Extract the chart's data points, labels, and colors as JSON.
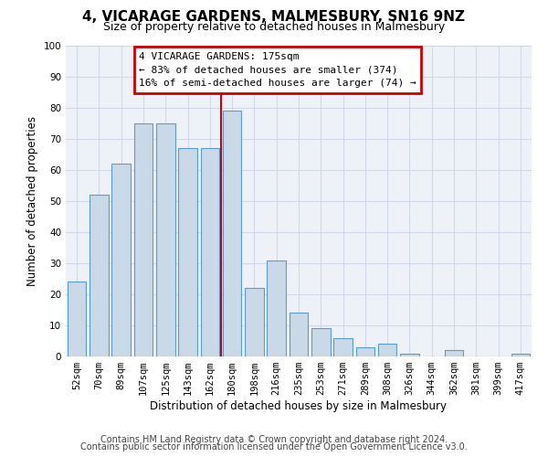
{
  "title": "4, VICARAGE GARDENS, MALMESBURY, SN16 9NZ",
  "subtitle": "Size of property relative to detached houses in Malmesbury",
  "xlabel": "Distribution of detached houses by size in Malmesbury",
  "ylabel": "Number of detached properties",
  "categories": [
    "52sqm",
    "70sqm",
    "89sqm",
    "107sqm",
    "125sqm",
    "143sqm",
    "162sqm",
    "180sqm",
    "198sqm",
    "216sqm",
    "235sqm",
    "253sqm",
    "271sqm",
    "289sqm",
    "308sqm",
    "326sqm",
    "344sqm",
    "362sqm",
    "381sqm",
    "399sqm",
    "417sqm"
  ],
  "values": [
    24,
    52,
    62,
    75,
    75,
    67,
    67,
    79,
    22,
    31,
    14,
    9,
    6,
    3,
    4,
    1,
    0,
    2,
    0,
    0,
    1
  ],
  "bar_color": "#c9d9e8",
  "bar_edge_color": "#5b9bd5",
  "vline_color": "#cc0000",
  "annotation_box_color": "#cc0000",
  "annotation_text_line1": "4 VICARAGE GARDENS: 175sqm",
  "annotation_text_line2": "← 83% of detached houses are smaller (374)",
  "annotation_text_line3": "16% of semi-detached houses are larger (74) →",
  "grid_color": "#d0d8e8",
  "background_color": "#eef2f8",
  "ylim": [
    0,
    100
  ],
  "yticks": [
    0,
    10,
    20,
    30,
    40,
    50,
    60,
    70,
    80,
    90,
    100
  ],
  "footnote1": "Contains HM Land Registry data © Crown copyright and database right 2024.",
  "footnote2": "Contains public sector information licensed under the Open Government Licence v3.0.",
  "title_fontsize": 11,
  "subtitle_fontsize": 9,
  "axis_label_fontsize": 8.5,
  "tick_fontsize": 7.5,
  "annotation_fontsize": 8,
  "footnote_fontsize": 7
}
